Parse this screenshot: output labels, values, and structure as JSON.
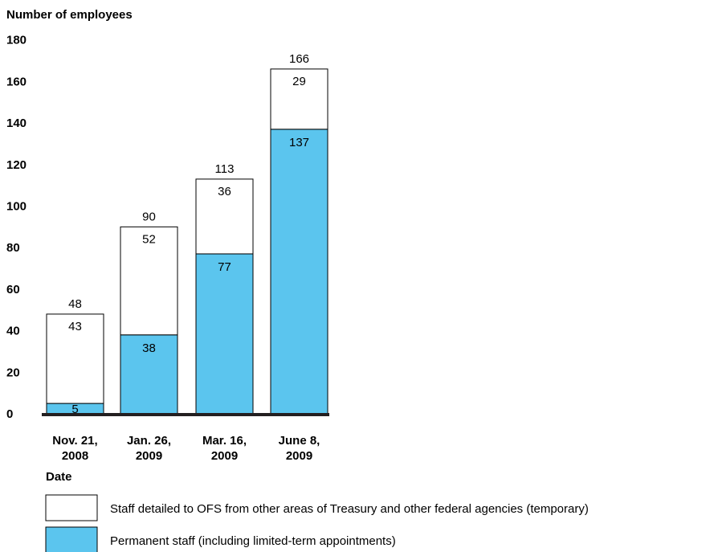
{
  "chart_data": {
    "type": "bar",
    "stacked": true,
    "ylabel": "Number of employees",
    "xlabel": "Date",
    "ylim": [
      0,
      180
    ],
    "yticks": [
      "0",
      "20",
      "40",
      "60",
      "80",
      "100",
      "120",
      "140",
      "160",
      "180"
    ],
    "ytick_values": [
      0,
      20,
      40,
      60,
      80,
      100,
      120,
      140,
      160,
      180
    ],
    "categories": [
      [
        "Nov. 21,",
        "2008"
      ],
      [
        "Jan. 26,",
        "2009"
      ],
      [
        "Mar. 16,",
        "2009"
      ],
      [
        "June 8,",
        "2009"
      ]
    ],
    "totals": [
      48,
      90,
      113,
      166
    ],
    "series": [
      {
        "name": "Permanent staff (including limited-term appointments)",
        "values": [
          5,
          38,
          77,
          137
        ],
        "color": "#5bc5ee"
      },
      {
        "name": "Staff detailed to OFS from other areas of Treasury and other federal agencies (temporary)",
        "values": [
          43,
          52,
          36,
          29
        ],
        "color": "#ffffff"
      }
    ],
    "legend_order": [
      1,
      0
    ],
    "legend_placement": "bottom",
    "grid": false
  }
}
